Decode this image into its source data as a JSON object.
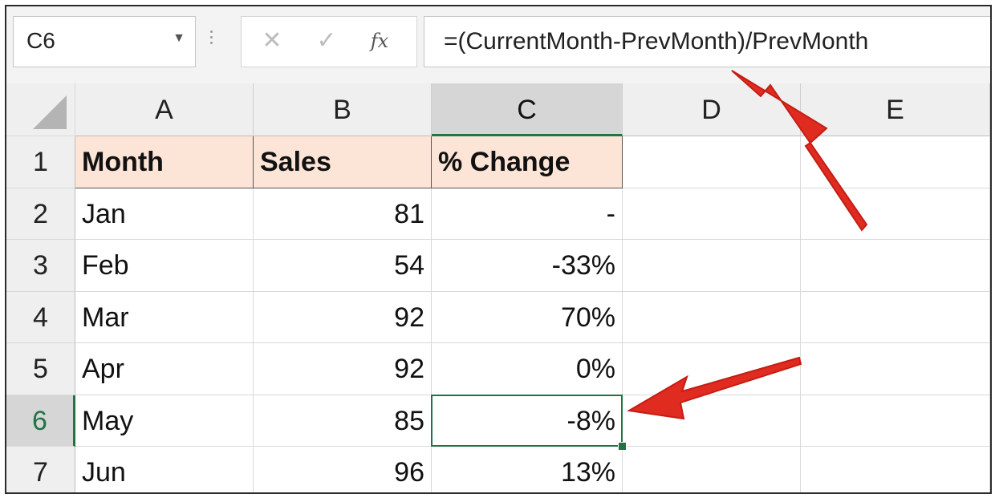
{
  "formula_bar": {
    "name_box": "C6",
    "name_box_dropdown_icon": "caret-down-icon",
    "cancel_symbol": "✕",
    "enter_symbol": "✓",
    "fx_symbol": "fx",
    "formula": "=(CurrentMonth-PrevMonth)/PrevMonth"
  },
  "sheet": {
    "columns": [
      "A",
      "B",
      "C",
      "D",
      "E"
    ],
    "rows": [
      "1",
      "2",
      "3",
      "4",
      "5",
      "6",
      "7"
    ],
    "selected_cell": "C6",
    "cells": [
      [
        "Month",
        "Sales",
        "% Change",
        "",
        ""
      ],
      [
        "Jan",
        "81",
        "-",
        "",
        ""
      ],
      [
        "Feb",
        "54",
        "-33%",
        "",
        ""
      ],
      [
        "Mar",
        "92",
        "70%",
        "",
        ""
      ],
      [
        "Apr",
        "92",
        "0%",
        "",
        ""
      ],
      [
        "May",
        "85",
        "-8%",
        "",
        ""
      ],
      [
        "Jun",
        "96",
        "13%",
        "",
        ""
      ]
    ]
  },
  "colors": {
    "header_fill": "#fce4d6",
    "selection": "#217346",
    "arrow": "#e02b20"
  }
}
